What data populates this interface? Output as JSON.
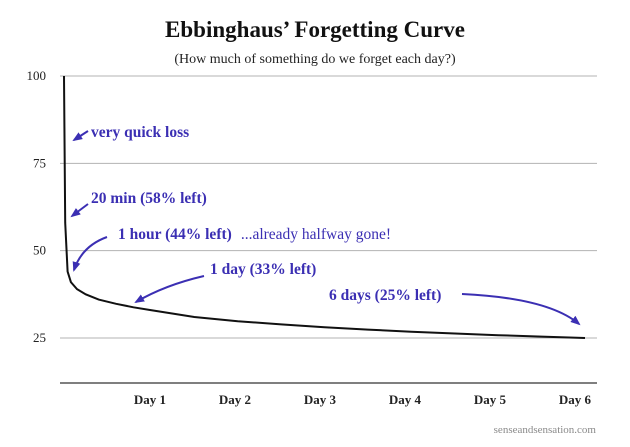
{
  "colors": {
    "curve": "#111111",
    "grid": "#b3b3b3",
    "axis": "#333333",
    "annotation": "#3b2fb3"
  },
  "chart_data": {
    "type": "line",
    "title": "Ebbinghaus’ Forgetting Curve",
    "subtitle": "(How much of something do we forget each day?)",
    "xlabel": "",
    "ylabel": "",
    "xlim": [
      0,
      6
    ],
    "ylim": [
      10,
      100
    ],
    "grid": true,
    "y_ticks": [
      {
        "value": 100,
        "label": "100"
      },
      {
        "value": 75,
        "label": "75"
      },
      {
        "value": 50,
        "label": "50"
      },
      {
        "value": 25,
        "label": "25"
      }
    ],
    "x_ticks": [
      {
        "value": 1,
        "label": "Day 1"
      },
      {
        "value": 2,
        "label": "Day 2"
      },
      {
        "value": 3,
        "label": "Day 3"
      },
      {
        "value": 4,
        "label": "Day 4"
      },
      {
        "value": 5,
        "label": "Day 5"
      },
      {
        "value": 6,
        "label": "Day 6"
      }
    ],
    "series": [
      {
        "x": [
          0,
          0.014,
          0.042,
          0.08,
          0.15,
          0.25,
          0.4,
          0.6,
          0.8,
          1,
          1.5,
          2,
          2.5,
          3,
          3.5,
          4,
          4.5,
          5,
          5.5,
          6
        ],
        "y": [
          100,
          58,
          44,
          41,
          39,
          37.5,
          36,
          34.8,
          33.8,
          33,
          31,
          29.8,
          28.9,
          28.1,
          27.4,
          26.8,
          26.3,
          25.8,
          25.4,
          25
        ]
      }
    ],
    "annotations": [
      {
        "bold": "very quick loss",
        "plain": "",
        "anchor_x": 0.0,
        "anchor_y": 82
      },
      {
        "bold": "20 min (58% left)",
        "plain": "",
        "anchor_x": 0.014,
        "anchor_y": 58
      },
      {
        "bold": "1 hour (44% left)",
        "plain": "...already halfway gone!",
        "anchor_x": 0.042,
        "anchor_y": 44
      },
      {
        "bold": "1 day (33% left)",
        "plain": "",
        "anchor_x": 1,
        "anchor_y": 33
      },
      {
        "bold": "6 days (25% left)",
        "plain": "",
        "anchor_x": 6,
        "anchor_y": 25
      }
    ]
  },
  "credit": "senseandsensation.com"
}
